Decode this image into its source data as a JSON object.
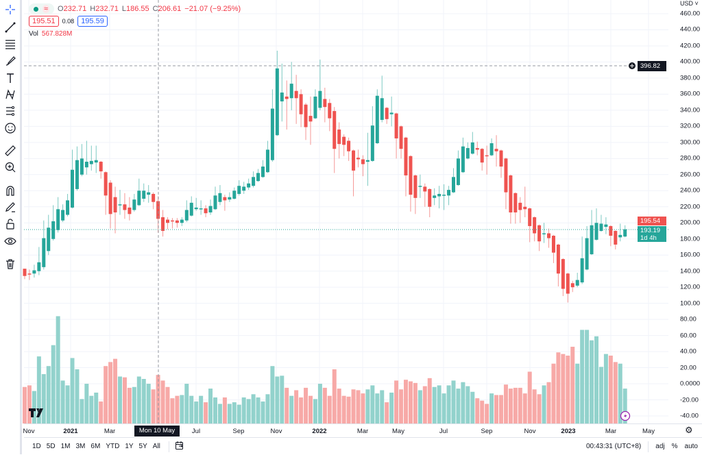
{
  "legend": {
    "o_key": "O",
    "o_val": "232.71",
    "h_key": "H",
    "h_val": "232.71",
    "l_key": "L",
    "l_val": "186.55",
    "c_key": "C",
    "c_val": "206.61",
    "change": "−21.07 (−9.25%)",
    "bid": "195.51",
    "spread": "0.08",
    "ask": "195.59",
    "vol_key": "Vol",
    "vol_val": "567.828M"
  },
  "price_axis": {
    "currency": "USD ˅",
    "labels": [
      "460.00",
      "440.00",
      "420.00",
      "400.00",
      "380.00",
      "360.00",
      "340.00",
      "320.00",
      "300.00",
      "280.00",
      "260.00",
      "240.00",
      "220.00",
      "200.00",
      "180.00",
      "160.00",
      "140.00",
      "120.00",
      "100.00",
      "80.00",
      "60.00",
      "40.00",
      "20.00",
      "0.0000",
      "-20.00",
      "-40.00"
    ],
    "crosshair_price": "396.82",
    "last_price": "195.54",
    "current_price": "193.19",
    "countdown": "1d 4h"
  },
  "time_axis": {
    "ticks": [
      "Nov",
      "2021",
      "Mar",
      "Jul",
      "Sep",
      "Nov",
      "2022",
      "Mar",
      "May",
      "Jul",
      "Sep",
      "Nov",
      "2023",
      "Mar",
      "May"
    ],
    "crosshair_date": "Mon 10 May '21"
  },
  "bottom_bar": {
    "ranges": [
      "1D",
      "5D",
      "1M",
      "3M",
      "6M",
      "YTD",
      "1Y",
      "5Y",
      "All"
    ],
    "clock": "00:43:31 (UTC+8)",
    "adj": "adj",
    "percent": "%",
    "auto": "auto"
  },
  "colors": {
    "up": "#26a69a",
    "down": "#ef5350",
    "up_volume": "#92d2cc",
    "down_volume": "#f7a9a7"
  },
  "chart_data": {
    "type": "candlestick",
    "interval": "weekly",
    "y_range": [
      -40,
      460
    ],
    "grid": true,
    "candles_ohlc": [
      [
        143,
        143,
        130,
        134
      ],
      [
        137,
        142,
        129,
        136
      ],
      [
        137,
        148,
        132,
        141
      ],
      [
        140,
        170,
        135,
        151
      ],
      [
        145,
        203,
        142,
        181
      ],
      [
        165,
        210,
        160,
        194
      ],
      [
        180,
        222,
        178,
        202
      ],
      [
        191,
        232,
        188,
        217
      ],
      [
        203,
        223,
        201,
        216
      ],
      [
        210,
        236,
        208,
        228
      ],
      [
        219,
        291,
        218,
        266
      ],
      [
        242,
        295,
        240,
        278
      ],
      [
        260,
        298,
        258,
        280
      ],
      [
        269,
        302,
        260,
        276
      ],
      [
        273,
        296,
        265,
        277
      ],
      [
        275,
        296,
        262,
        278
      ],
      [
        276,
        277,
        255,
        264
      ],
      [
        263,
        264,
        210,
        234
      ],
      [
        250,
        253,
        193,
        211
      ],
      [
        232,
        245,
        187,
        213
      ],
      [
        222,
        241,
        210,
        223
      ],
      [
        223,
        237,
        205,
        216
      ],
      [
        219,
        232,
        203,
        211
      ],
      [
        216,
        236,
        214,
        229
      ],
      [
        222,
        255,
        221,
        240
      ],
      [
        230,
        249,
        226,
        240
      ],
      [
        235,
        247,
        225,
        238
      ],
      [
        236,
        238,
        217,
        226
      ],
      [
        227,
        233,
        188,
        205
      ],
      [
        207,
        216,
        183,
        190
      ],
      [
        204,
        207,
        192,
        200
      ],
      [
        203,
        206,
        193,
        202
      ],
      [
        203,
        206,
        194,
        200
      ],
      [
        200,
        207,
        196,
        204
      ],
      [
        203,
        228,
        201,
        216
      ],
      [
        209,
        233,
        208,
        225
      ],
      [
        217,
        231,
        215,
        219
      ],
      [
        217,
        228,
        210,
        218
      ],
      [
        218,
        222,
        207,
        212
      ],
      [
        213,
        229,
        210,
        221
      ],
      [
        217,
        245,
        216,
        234
      ],
      [
        226,
        247,
        222,
        237
      ],
      [
        232,
        235,
        215,
        228
      ],
      [
        229,
        238,
        226,
        232
      ],
      [
        230,
        244,
        229,
        240
      ],
      [
        236,
        253,
        234,
        246
      ],
      [
        240,
        251,
        236,
        245
      ],
      [
        244,
        255,
        241,
        249
      ],
      [
        246,
        264,
        244,
        257
      ],
      [
        252,
        267,
        251,
        262
      ],
      [
        257,
        278,
        256,
        270
      ],
      [
        263,
        302,
        262,
        291
      ],
      [
        278,
        366,
        276,
        342
      ],
      [
        309,
        414,
        308,
        392
      ],
      [
        351,
        398,
        326,
        362
      ],
      [
        357,
        377,
        316,
        354
      ],
      [
        355,
        400,
        340,
        373
      ],
      [
        364,
        384,
        323,
        355
      ],
      [
        360,
        366,
        319,
        335
      ],
      [
        347,
        349,
        303,
        319
      ],
      [
        333,
        357,
        297,
        326
      ],
      [
        330,
        366,
        329,
        357
      ],
      [
        343,
        403,
        340,
        364
      ],
      [
        354,
        368,
        325,
        344
      ],
      [
        349,
        354,
        314,
        330
      ],
      [
        339,
        344,
        262,
        292
      ],
      [
        316,
        325,
        280,
        298
      ],
      [
        307,
        310,
        283,
        297
      ],
      [
        302,
        306,
        277,
        289
      ],
      [
        290,
        291,
        233,
        265
      ],
      [
        281,
        291,
        269,
        279
      ],
      [
        279,
        284,
        258,
        273
      ],
      [
        276,
        312,
        246,
        278
      ],
      [
        277,
        345,
        276,
        321
      ],
      [
        299,
        366,
        298,
        358
      ],
      [
        328,
        383,
        325,
        355
      ],
      [
        343,
        344,
        323,
        329
      ],
      [
        335,
        357,
        320,
        337
      ],
      [
        336,
        337,
        280,
        305
      ],
      [
        320,
        321,
        280,
        292
      ],
      [
        306,
        307,
        233,
        259
      ],
      [
        283,
        284,
        214,
        235
      ],
      [
        259,
        260,
        211,
        231
      ],
      [
        245,
        260,
        231,
        246
      ],
      [
        245,
        249,
        220,
        239
      ],
      [
        242,
        243,
        207,
        220
      ],
      [
        231,
        243,
        222,
        234
      ],
      [
        233,
        246,
        218,
        236
      ],
      [
        234,
        248,
        216,
        235
      ],
      [
        234,
        246,
        222,
        241
      ],
      [
        238,
        268,
        237,
        257
      ],
      [
        247,
        290,
        246,
        280
      ],
      [
        263,
        306,
        262,
        295
      ],
      [
        280,
        300,
        279,
        293
      ],
      [
        286,
        313,
        285,
        300
      ],
      [
        293,
        301,
        284,
        291
      ],
      [
        292,
        293,
        265,
        275
      ],
      [
        284,
        296,
        260,
        283
      ],
      [
        284,
        305,
        283,
        299
      ],
      [
        292,
        309,
        270,
        289
      ],
      [
        290,
        291,
        256,
        270
      ],
      [
        280,
        281,
        217,
        238
      ],
      [
        259,
        260,
        199,
        213
      ],
      [
        237,
        238,
        199,
        213
      ],
      [
        225,
        232,
        200,
        216
      ],
      [
        220,
        245,
        207,
        217
      ],
      [
        218,
        219,
        176,
        196
      ],
      [
        207,
        208,
        177,
        187
      ],
      [
        197,
        198,
        165,
        177
      ],
      [
        186,
        200,
        175,
        187
      ],
      [
        187,
        193,
        169,
        181
      ],
      [
        184,
        185,
        150,
        163
      ],
      [
        173,
        174,
        121,
        137
      ],
      [
        155,
        156,
        109,
        118
      ],
      [
        137,
        138,
        101,
        112
      ],
      [
        125,
        128,
        114,
        120
      ],
      [
        122,
        138,
        120,
        129
      ],
      [
        126,
        183,
        124,
        156
      ],
      [
        142,
        196,
        141,
        181
      ],
      [
        161,
        216,
        160,
        197
      ],
      [
        179,
        218,
        178,
        200
      ],
      [
        190,
        210,
        189,
        199
      ],
      [
        195,
        207,
        186,
        198
      ],
      [
        196,
        197,
        171,
        184
      ],
      [
        190,
        191,
        167,
        173
      ],
      [
        182,
        199,
        177,
        185
      ],
      [
        183,
        197,
        182,
        192
      ]
    ],
    "volume_on_axis": [
      -4,
      -2,
      -9,
      34,
      12,
      22,
      48,
      84,
      4,
      -2,
      32,
      18,
      -19,
      0,
      -15,
      -11,
      -22,
      22,
      27,
      31,
      9,
      8,
      -5,
      -4,
      9,
      6,
      0,
      -7,
      11,
      4,
      -4,
      -18,
      -15,
      -14,
      0,
      -15,
      -22,
      -15,
      -23,
      -6,
      -17,
      -25,
      -17,
      -25,
      -23,
      -26,
      -17,
      -19,
      -13,
      -17,
      -22,
      -13,
      22,
      9,
      10,
      -5,
      -15,
      -8,
      -17,
      -5,
      -15,
      -19,
      0,
      -5,
      -15,
      18,
      -6,
      -15,
      -16,
      -7,
      -8,
      -12,
      -7,
      -2,
      -12,
      -8,
      -23,
      -11,
      4,
      -7,
      5,
      3,
      1,
      -8,
      -3,
      7,
      -4,
      -2,
      -12,
      -2,
      4,
      -6,
      2,
      -3,
      -10,
      -18,
      -21,
      -25,
      -12,
      -14,
      -14,
      -1,
      -6,
      -5,
      -5,
      -12,
      15,
      -7,
      -13,
      -2,
      2,
      25,
      39,
      37,
      35,
      46,
      25,
      67,
      67,
      54,
      59,
      21,
      37,
      35,
      27,
      25,
      -6
    ]
  }
}
